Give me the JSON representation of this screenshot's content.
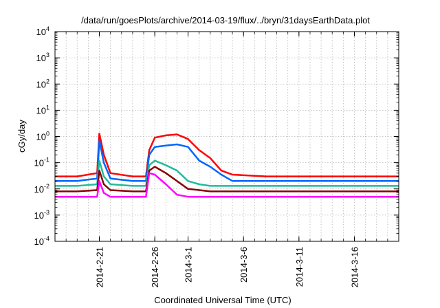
{
  "chart_data": {
    "type": "line",
    "title": "/data/run/goesPlots/archive/2014-03-19/flux/../bryn/31daysEarthData.plot",
    "xlabel": "Coordinated Universal Time (UTC)",
    "ylabel": "cGy/day",
    "yscale": "log",
    "ylim": [
      0.0001,
      10000
    ],
    "xlim": [
      "2014-02-17",
      "2014-03-20"
    ],
    "grid": true,
    "legend": "none",
    "x_ticks": [
      "2014-2-21",
      "2014-2-26",
      "2014-3-1",
      "2014-3-6",
      "2014-3-11",
      "2014-3-16"
    ],
    "y_ticks": [
      {
        "base": "10",
        "exp": "-4"
      },
      {
        "base": "10",
        "exp": "-3"
      },
      {
        "base": "10",
        "exp": "-2"
      },
      {
        "base": "10",
        "exp": "-1"
      },
      {
        "base": "10",
        "exp": "0"
      },
      {
        "base": "10",
        "exp": "1"
      },
      {
        "base": "10",
        "exp": "2"
      },
      {
        "base": "10",
        "exp": "3"
      },
      {
        "base": "10",
        "exp": "4"
      }
    ],
    "series": [
      {
        "color": "#ff0000",
        "x": [
          "2014-02-17",
          "2014-02-19",
          "2014-02-20.8",
          "2014-02-21",
          "2014-02-21.4",
          "2014-02-22",
          "2014-02-24",
          "2014-02-25.2",
          "2014-02-25.5",
          "2014-02-26",
          "2014-02-27",
          "2014-02-28",
          "2014-03-01",
          "2014-03-02",
          "2014-03-03",
          "2014-03-04",
          "2014-03-05",
          "2014-03-08",
          "2014-03-12",
          "2014-03-16",
          "2014-03-20"
        ],
        "values": [
          0.03,
          0.03,
          0.04,
          1.3,
          0.2,
          0.04,
          0.03,
          0.03,
          0.3,
          0.9,
          1.1,
          1.2,
          0.8,
          0.3,
          0.15,
          0.05,
          0.035,
          0.03,
          0.03,
          0.03,
          0.03
        ]
      },
      {
        "color": "#0066ff",
        "x": [
          "2014-02-17",
          "2014-02-19",
          "2014-02-20.8",
          "2014-02-21",
          "2014-02-21.4",
          "2014-02-22",
          "2014-02-24",
          "2014-02-25.2",
          "2014-02-25.5",
          "2014-02-26",
          "2014-02-27",
          "2014-02-28",
          "2014-03-01",
          "2014-03-02",
          "2014-03-03",
          "2014-03-04",
          "2014-03-05",
          "2014-03-08",
          "2014-03-12",
          "2014-03-16",
          "2014-03-20"
        ],
        "values": [
          0.02,
          0.02,
          0.025,
          0.7,
          0.1,
          0.025,
          0.02,
          0.02,
          0.2,
          0.4,
          0.45,
          0.5,
          0.4,
          0.12,
          0.07,
          0.035,
          0.02,
          0.02,
          0.02,
          0.02,
          0.02
        ]
      },
      {
        "color": "#22bb99",
        "x": [
          "2014-02-17",
          "2014-02-19",
          "2014-02-20.8",
          "2014-02-21",
          "2014-02-21.4",
          "2014-02-22",
          "2014-02-24",
          "2014-02-25.2",
          "2014-02-25.5",
          "2014-02-26",
          "2014-02-27",
          "2014-02-28",
          "2014-03-01",
          "2014-03-02",
          "2014-03-03",
          "2014-03-04",
          "2014-03-05",
          "2014-03-08",
          "2014-03-12",
          "2014-03-16",
          "2014-03-20"
        ],
        "values": [
          0.013,
          0.013,
          0.015,
          0.12,
          0.03,
          0.015,
          0.013,
          0.013,
          0.08,
          0.12,
          0.08,
          0.05,
          0.02,
          0.015,
          0.013,
          0.013,
          0.013,
          0.013,
          0.013,
          0.013,
          0.013
        ]
      },
      {
        "color": "#880000",
        "x": [
          "2014-02-17",
          "2014-02-19",
          "2014-02-20.8",
          "2014-02-21",
          "2014-02-21.4",
          "2014-02-22",
          "2014-02-24",
          "2014-02-25.2",
          "2014-02-25.5",
          "2014-02-26",
          "2014-02-27",
          "2014-02-28",
          "2014-03-01",
          "2014-03-02",
          "2014-03-03",
          "2014-03-04",
          "2014-03-05",
          "2014-03-08",
          "2014-03-12",
          "2014-03-16",
          "2014-03-20"
        ],
        "values": [
          0.008,
          0.008,
          0.009,
          0.05,
          0.015,
          0.009,
          0.008,
          0.008,
          0.05,
          0.07,
          0.04,
          0.02,
          0.01,
          0.009,
          0.008,
          0.008,
          0.008,
          0.008,
          0.008,
          0.008,
          0.008
        ]
      },
      {
        "color": "#ff00ff",
        "x": [
          "2014-02-17",
          "2014-02-19",
          "2014-02-20.8",
          "2014-02-21",
          "2014-02-21.4",
          "2014-02-22",
          "2014-02-24",
          "2014-02-25.2",
          "2014-02-25.5",
          "2014-02-26",
          "2014-02-27",
          "2014-02-28",
          "2014-03-01",
          "2014-03-02",
          "2014-03-03",
          "2014-03-04",
          "2014-03-05",
          "2014-03-08",
          "2014-03-12",
          "2014-03-16",
          "2014-03-20"
        ],
        "values": [
          0.005,
          0.005,
          0.005,
          0.02,
          0.007,
          0.005,
          0.005,
          0.005,
          0.04,
          0.035,
          0.015,
          0.006,
          0.005,
          0.005,
          0.005,
          0.005,
          0.005,
          0.005,
          0.005,
          0.005,
          0.005
        ]
      }
    ]
  }
}
